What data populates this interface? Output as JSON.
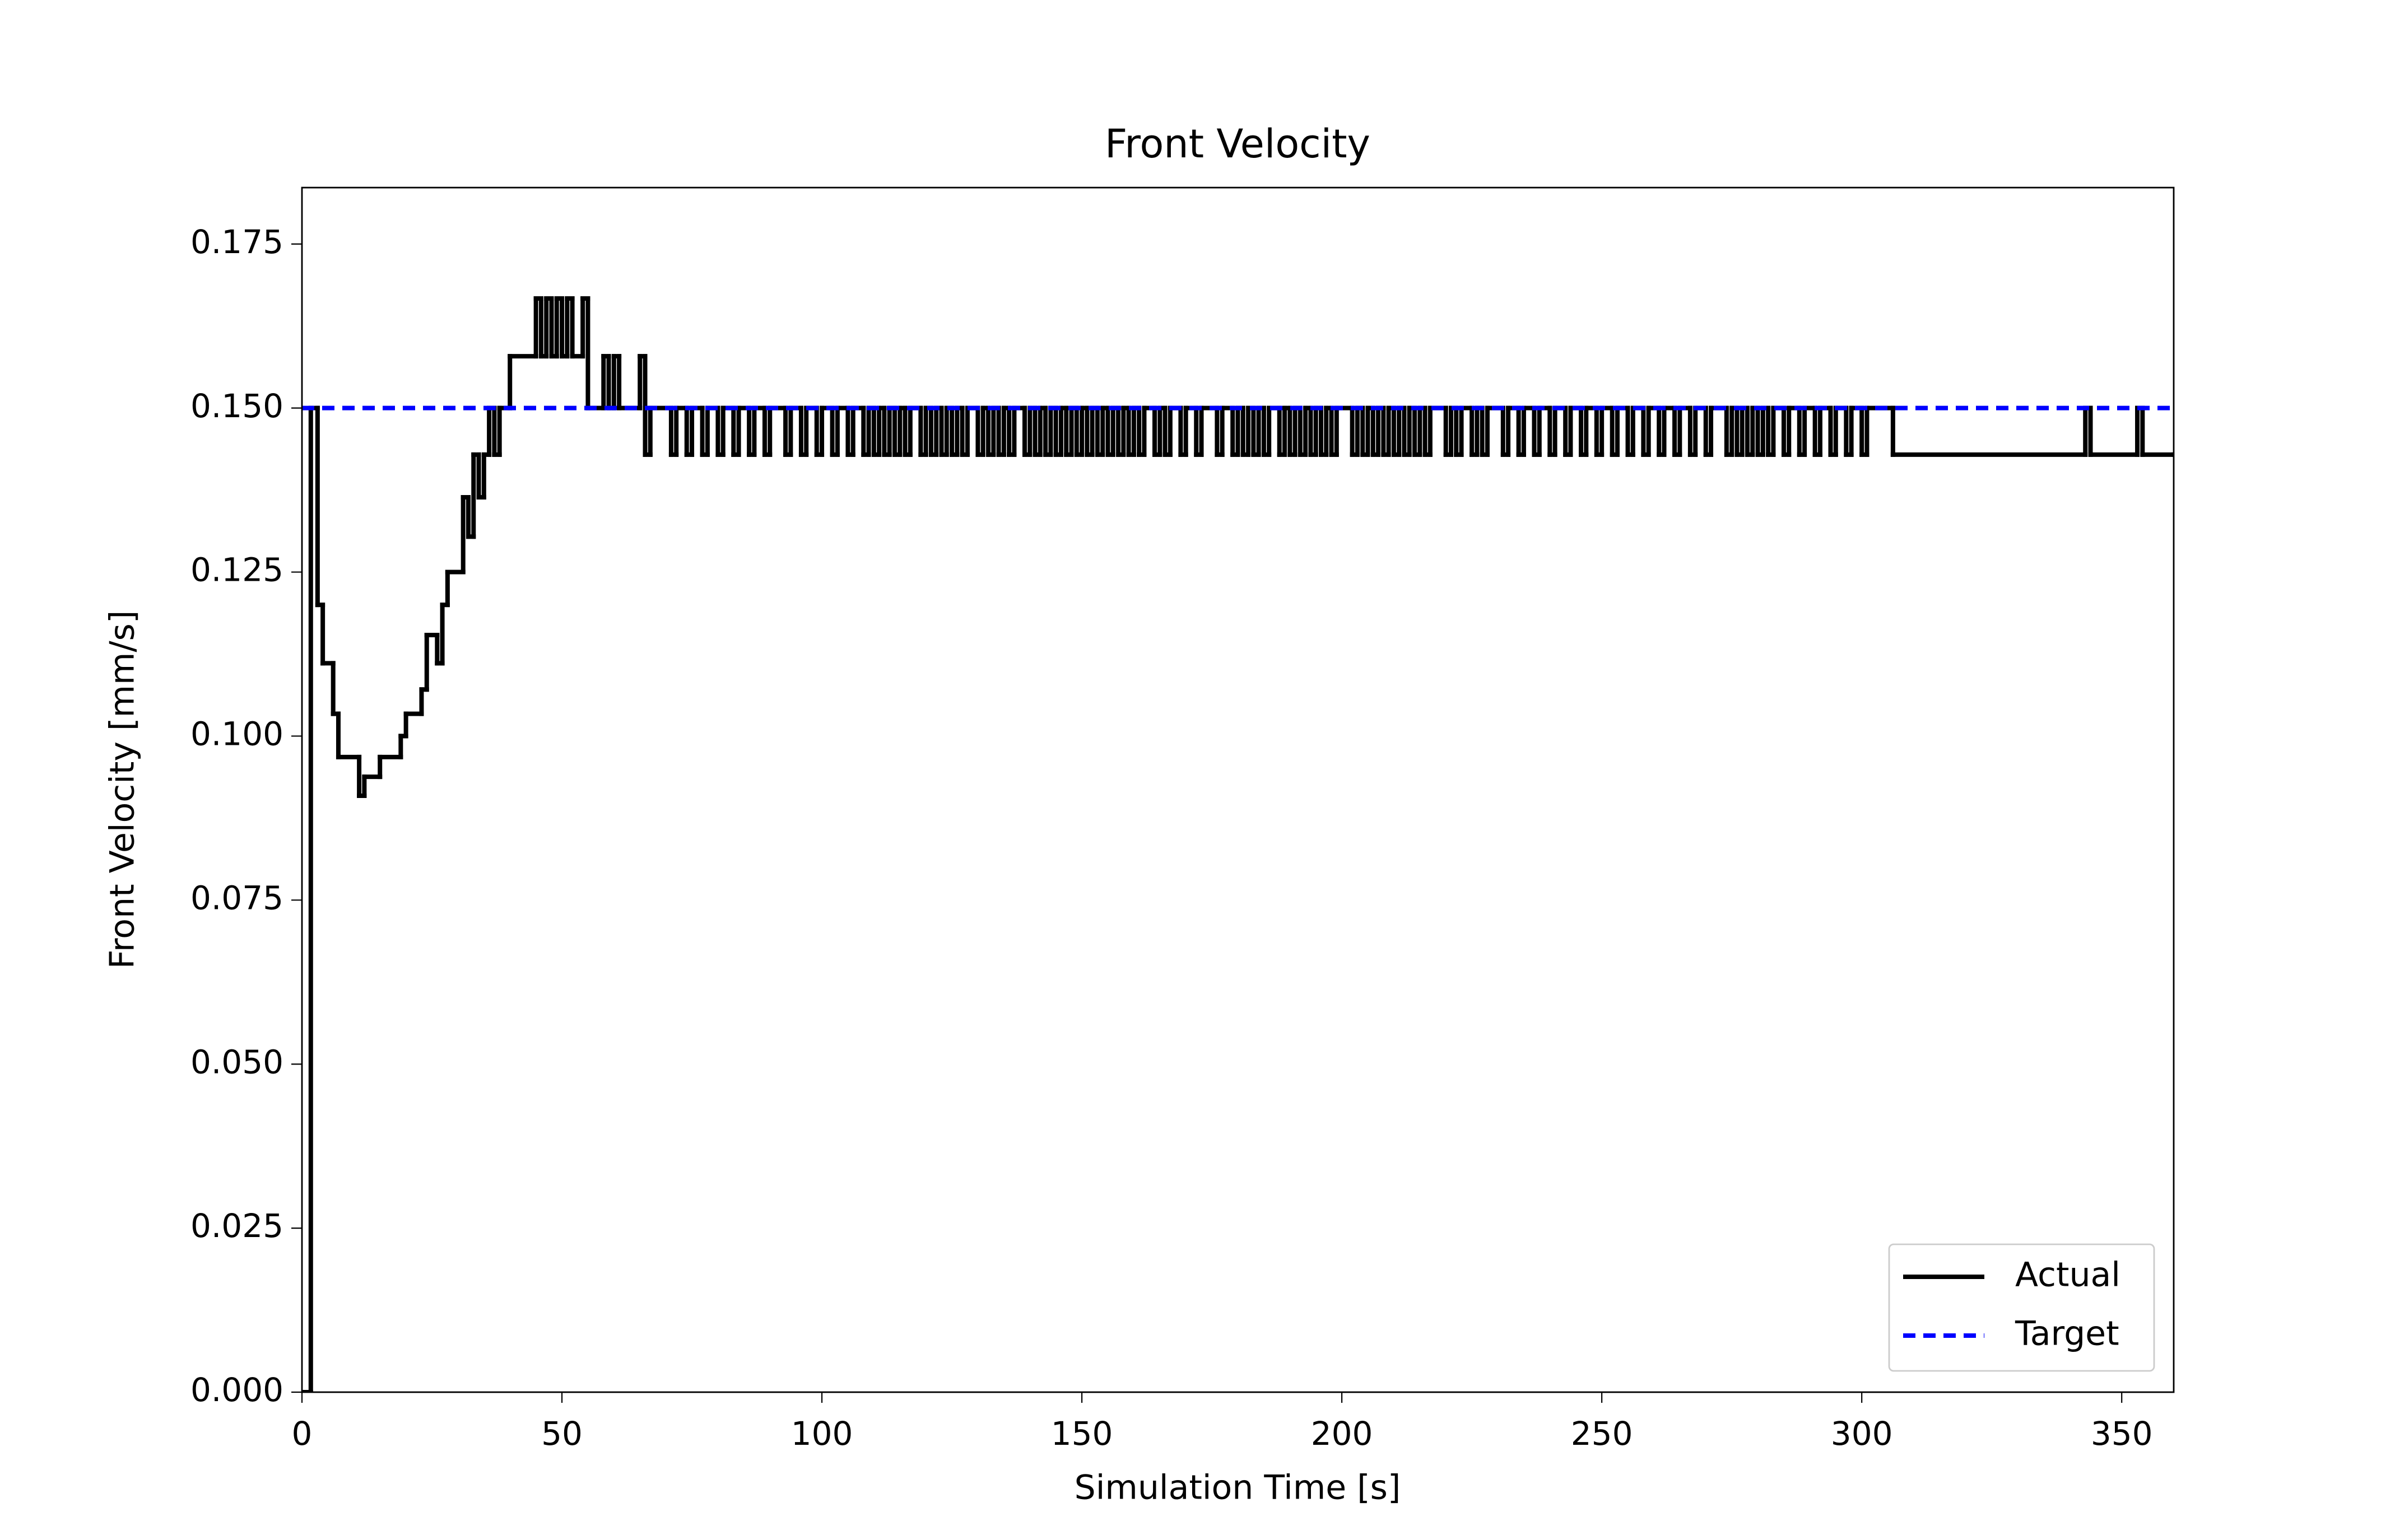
{
  "chart_data": {
    "type": "step",
    "title": "Front Velocity",
    "xlabel": "Simulation Time [s]",
    "ylabel": "Front Velocity [mm/s]",
    "xlim": [
      0,
      360
    ],
    "ylim": [
      0,
      0.1836
    ],
    "xticks": [
      0,
      50,
      100,
      150,
      200,
      250,
      300,
      350
    ],
    "yticks": [
      {
        "value": 0,
        "label": "0.000"
      },
      {
        "value": 0.025,
        "label": "0.025"
      },
      {
        "value": 0.05,
        "label": "0.050"
      },
      {
        "value": 0.075,
        "label": "0.075"
      },
      {
        "value": 0.1,
        "label": "0.100"
      },
      {
        "value": 0.125,
        "label": "0.125"
      },
      {
        "value": 0.15,
        "label": "0.150"
      },
      {
        "value": 0.175,
        "label": "0.175"
      }
    ],
    "legend": "lower right",
    "grid": false,
    "series": [
      {
        "name": "Actual",
        "color": "#000000",
        "dash": false,
        "x": [
          0,
          1.7,
          3,
          4,
          6,
          7,
          11,
          12,
          15,
          19,
          20,
          23,
          24,
          26,
          27,
          28,
          31,
          32,
          33,
          34,
          35,
          36,
          37,
          38,
          40,
          45,
          46,
          47,
          48,
          49,
          50,
          51,
          52,
          54,
          55,
          58,
          59,
          60,
          61,
          65,
          66,
          67,
          71,
          72,
          74,
          75,
          77,
          78,
          80,
          81,
          83,
          84,
          86,
          87,
          89,
          90,
          93,
          94,
          96,
          97,
          99,
          100,
          102,
          103,
          105,
          106,
          108,
          109,
          110,
          111,
          112,
          113,
          114,
          115,
          116,
          117,
          119,
          120,
          121,
          122,
          123,
          124,
          125,
          126,
          127,
          128,
          130,
          131,
          132,
          133,
          134,
          135,
          136,
          137,
          139,
          140,
          141,
          142,
          143,
          144,
          145,
          146,
          147,
          148,
          149,
          150,
          151,
          152,
          153,
          154,
          155,
          156,
          157,
          158,
          159,
          160,
          161,
          162,
          164,
          165,
          166,
          167,
          169,
          170,
          172,
          173,
          176,
          177,
          179,
          180,
          181,
          182,
          183,
          184,
          185,
          186,
          188,
          189,
          190,
          191,
          192,
          193,
          194,
          195,
          196,
          197,
          198,
          199,
          202,
          203,
          204,
          205,
          206,
          207,
          208,
          209,
          210,
          211,
          212,
          213,
          214,
          215,
          216,
          217,
          220,
          221,
          222,
          223,
          225,
          226,
          227,
          228,
          231,
          232,
          234,
          235,
          237,
          238,
          240,
          241,
          243,
          244,
          246,
          247,
          249,
          250,
          252,
          253,
          255,
          256,
          258,
          259,
          261,
          262,
          264,
          265,
          267,
          268,
          270,
          271,
          274,
          275,
          276,
          277,
          278,
          279,
          280,
          281,
          282,
          283,
          285,
          286,
          288,
          289,
          291,
          292,
          294,
          295,
          297,
          298,
          300,
          301,
          306,
          343,
          344,
          353,
          354,
          360
        ],
        "values": [
          0,
          0.15,
          0.12,
          0.1111,
          0.1034,
          0.0968,
          0.0909,
          0.0938,
          0.0968,
          0.1,
          0.1034,
          0.1071,
          0.1154,
          0.1111,
          0.12,
          0.125,
          0.1364,
          0.1304,
          0.1429,
          0.1364,
          0.1429,
          0.15,
          0.1429,
          0.15,
          0.1579,
          0.1667,
          0.1579,
          0.1667,
          0.1579,
          0.1667,
          0.1579,
          0.1667,
          0.1579,
          0.1667,
          0.15,
          0.1579,
          0.15,
          0.1579,
          0.15,
          0.1579,
          0.1429,
          0.15,
          0.1429,
          0.15,
          0.1429,
          0.15,
          0.1429,
          0.15,
          0.1429,
          0.15,
          0.1429,
          0.15,
          0.1429,
          0.15,
          0.1429,
          0.15,
          0.1429,
          0.15,
          0.1429,
          0.15,
          0.1429,
          0.15,
          0.1429,
          0.15,
          0.1429,
          0.15,
          0.1429,
          0.15,
          0.1429,
          0.15,
          0.1429,
          0.15,
          0.1429,
          0.15,
          0.1429,
          0.15,
          0.1429,
          0.15,
          0.1429,
          0.15,
          0.1429,
          0.15,
          0.1429,
          0.15,
          0.1429,
          0.15,
          0.1429,
          0.15,
          0.1429,
          0.15,
          0.1429,
          0.15,
          0.1429,
          0.15,
          0.1429,
          0.15,
          0.1429,
          0.15,
          0.1429,
          0.15,
          0.1429,
          0.15,
          0.1429,
          0.15,
          0.1429,
          0.15,
          0.1429,
          0.15,
          0.1429,
          0.15,
          0.1429,
          0.15,
          0.1429,
          0.15,
          0.1429,
          0.15,
          0.1429,
          0.15,
          0.1429,
          0.15,
          0.1429,
          0.15,
          0.1429,
          0.15,
          0.1429,
          0.15,
          0.1429,
          0.15,
          0.1429,
          0.15,
          0.1429,
          0.15,
          0.1429,
          0.15,
          0.1429,
          0.15,
          0.1429,
          0.15,
          0.1429,
          0.15,
          0.1429,
          0.15,
          0.1429,
          0.15,
          0.1429,
          0.15,
          0.1429,
          0.15,
          0.1429,
          0.15,
          0.1429,
          0.15,
          0.1429,
          0.15,
          0.1429,
          0.15,
          0.1429,
          0.15,
          0.1429,
          0.15,
          0.1429,
          0.15,
          0.1429,
          0.15,
          0.1429,
          0.15,
          0.1429,
          0.15,
          0.1429,
          0.15,
          0.1429,
          0.15,
          0.1429,
          0.15,
          0.1429,
          0.15,
          0.1429,
          0.15,
          0.1429,
          0.15,
          0.1429,
          0.15,
          0.1429,
          0.15,
          0.1429,
          0.15,
          0.1429,
          0.15,
          0.1429,
          0.15,
          0.1429,
          0.15,
          0.1429,
          0.15,
          0.1429,
          0.15,
          0.1429,
          0.15,
          0.1429,
          0.15,
          0.1429,
          0.15,
          0.1429,
          0.15,
          0.1429,
          0.15,
          0.1429,
          0.15,
          0.1429,
          0.15,
          0.1429,
          0.15,
          0.1429,
          0.15,
          0.1429,
          0.15,
          0.1429,
          0.15,
          0.1429,
          0.15,
          0.1429,
          0.15,
          0.1429,
          0.15,
          0.1429,
          0.15,
          0.1429,
          0.1429
        ]
      },
      {
        "name": "Target",
        "color": "#0000ff",
        "dash": true,
        "x": [
          0,
          360
        ],
        "values": [
          0.15,
          0.15
        ]
      }
    ]
  }
}
